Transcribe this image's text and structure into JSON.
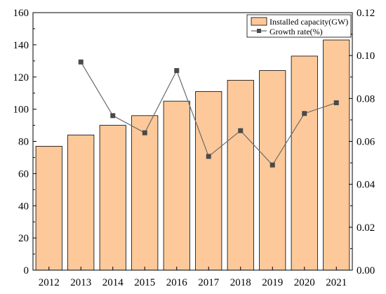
{
  "chart_data": {
    "type": "bar",
    "categories": [
      "2012",
      "2013",
      "2014",
      "2015",
      "2016",
      "2017",
      "2018",
      "2019",
      "2020",
      "2021"
    ],
    "series": [
      {
        "name": "Installed capacity(GW)",
        "type": "bar",
        "axis": "left",
        "color": "#fdc99a",
        "values": [
          77,
          84,
          90,
          96,
          105,
          111,
          118,
          124,
          133,
          143
        ]
      },
      {
        "name": "Growth rate(%)",
        "type": "line",
        "axis": "right",
        "color": "#555555",
        "marker": "square",
        "values": [
          null,
          0.097,
          0.072,
          0.064,
          0.093,
          0.053,
          0.065,
          0.049,
          0.073,
          0.078
        ]
      }
    ],
    "y_left": {
      "lim": [
        0,
        160
      ],
      "ticks": [
        0,
        20,
        40,
        60,
        80,
        100,
        120,
        140,
        160
      ]
    },
    "y_right": {
      "lim": [
        0,
        0.12
      ],
      "ticks": [
        "0.00",
        "0.02",
        "0.04",
        "0.06",
        "0.08",
        "0.10",
        "0.12"
      ]
    },
    "legend_position": "top-right",
    "grid": false
  }
}
